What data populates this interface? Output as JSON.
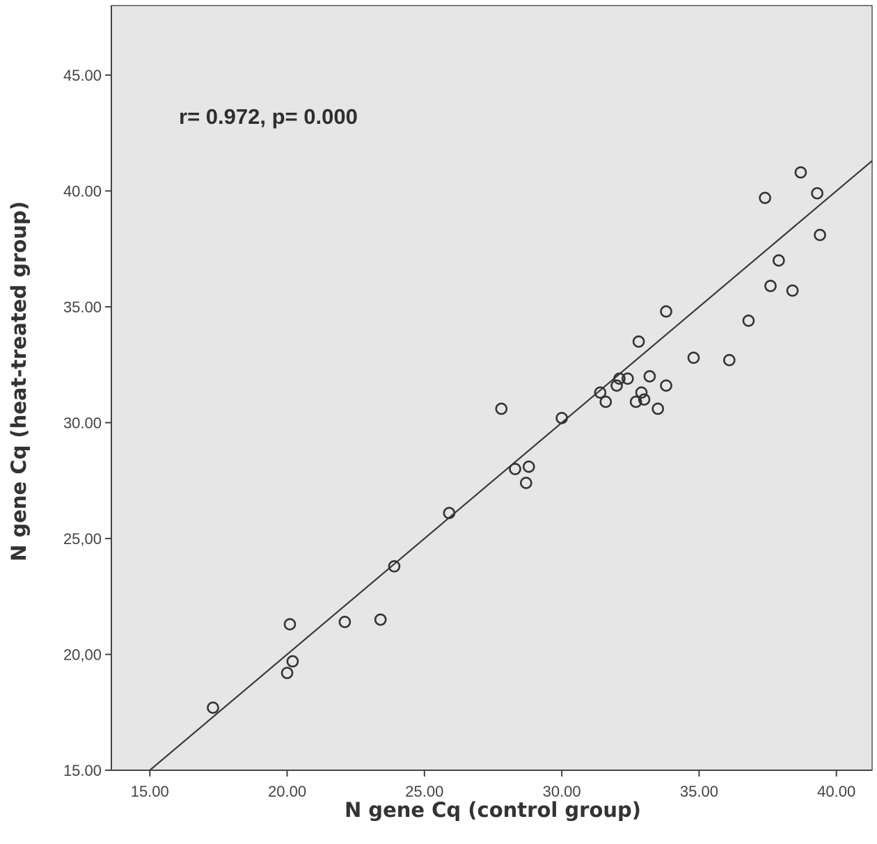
{
  "chart_data": {
    "type": "scatter",
    "xlabel": "N gene Cq (control group)",
    "ylabel": "N gene Cq (heat-treated group)",
    "annotation": "r= 0.972, p= 0.000",
    "xlim": [
      13.6,
      41.3
    ],
    "ylim": [
      15.0,
      48.0
    ],
    "x_ticks": [
      "15.00",
      "20.00",
      "25.00",
      "30.00",
      "35.00",
      "40.00"
    ],
    "y_ticks": [
      "15.00",
      "20,00",
      "25,00",
      "30.00",
      "35.00",
      "40.00",
      "45.00"
    ],
    "grid": false,
    "background": "#e6e6e6",
    "marker_color": "#333333",
    "fit_line": {
      "slope": 1.0,
      "intercept": 0.0
    },
    "points": [
      {
        "x": 17.3,
        "y": 17.7
      },
      {
        "x": 20.0,
        "y": 19.2
      },
      {
        "x": 20.2,
        "y": 19.7
      },
      {
        "x": 20.1,
        "y": 21.3
      },
      {
        "x": 22.1,
        "y": 21.4
      },
      {
        "x": 23.4,
        "y": 21.5
      },
      {
        "x": 23.9,
        "y": 23.8
      },
      {
        "x": 25.9,
        "y": 26.1
      },
      {
        "x": 27.8,
        "y": 30.6
      },
      {
        "x": 28.3,
        "y": 28.0
      },
      {
        "x": 28.7,
        "y": 27.4
      },
      {
        "x": 28.8,
        "y": 28.1
      },
      {
        "x": 30.0,
        "y": 30.2
      },
      {
        "x": 31.4,
        "y": 31.3
      },
      {
        "x": 31.6,
        "y": 30.9
      },
      {
        "x": 32.0,
        "y": 31.6
      },
      {
        "x": 32.1,
        "y": 31.9
      },
      {
        "x": 32.4,
        "y": 31.9
      },
      {
        "x": 32.7,
        "y": 30.9
      },
      {
        "x": 32.9,
        "y": 31.3
      },
      {
        "x": 33.0,
        "y": 31.0
      },
      {
        "x": 32.8,
        "y": 33.5
      },
      {
        "x": 33.2,
        "y": 32.0
      },
      {
        "x": 33.5,
        "y": 30.6
      },
      {
        "x": 33.8,
        "y": 31.6
      },
      {
        "x": 33.8,
        "y": 34.8
      },
      {
        "x": 34.8,
        "y": 32.8
      },
      {
        "x": 36.1,
        "y": 32.7
      },
      {
        "x": 36.8,
        "y": 34.4
      },
      {
        "x": 37.4,
        "y": 39.7
      },
      {
        "x": 37.6,
        "y": 35.9
      },
      {
        "x": 37.9,
        "y": 37.0
      },
      {
        "x": 38.4,
        "y": 35.7
      },
      {
        "x": 38.7,
        "y": 40.8
      },
      {
        "x": 39.3,
        "y": 39.9
      },
      {
        "x": 39.4,
        "y": 38.1
      }
    ]
  }
}
